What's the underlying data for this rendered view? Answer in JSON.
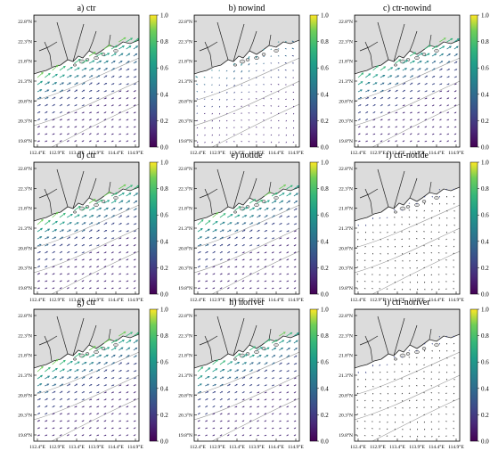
{
  "chart_data": [
    {
      "type": "quiver",
      "title": "a) ctr",
      "colorbar": {
        "ticks": [
          "0.0",
          "0.2",
          "0.4",
          "0.6",
          "0.8",
          "1.0"
        ],
        "range": [
          0,
          1
        ],
        "colormap": "viridis"
      },
      "xticks": [
        "112.4°E",
        "112.9°E",
        "113.4°E",
        "113.9°E",
        "114.4°E",
        "114.9°E"
      ],
      "yticks": [
        "22.8°N",
        "22.3°N",
        "21.8°N",
        "21.3°N",
        "20.8°N",
        "20.3°N",
        "19.8°N"
      ],
      "xlim": [
        112.4,
        114.9
      ],
      "ylim": [
        19.8,
        22.8
      ],
      "pattern": "jet",
      "strength": 1.0
    },
    {
      "type": "quiver",
      "title": "b) nowind",
      "colorbar": {
        "ticks": [
          "0.0",
          "0.2",
          "0.4",
          "0.6",
          "0.8",
          "1.0"
        ],
        "range": [
          0,
          1
        ],
        "colormap": "viridis"
      },
      "xticks": [
        "112.4°E",
        "112.9°E",
        "113.4°E",
        "113.9°E",
        "114.4°E",
        "114.9°E"
      ],
      "yticks": [
        "22.8°N",
        "22.3°N",
        "21.8°N",
        "21.3°N",
        "20.8°N",
        "20.3°N",
        "19.8°N"
      ],
      "xlim": [
        112.4,
        114.9
      ],
      "ylim": [
        19.8,
        22.8
      ],
      "pattern": "weak",
      "strength": 0.5
    },
    {
      "type": "quiver",
      "title": "c) ctr-nowind",
      "colorbar": {
        "ticks": [
          "0.0",
          "0.2",
          "0.4",
          "0.6",
          "0.8",
          "1.0"
        ],
        "range": [
          0,
          1
        ],
        "colormap": "viridis"
      },
      "xticks": [
        "112.4°E",
        "112.9°E",
        "113.4°E",
        "113.9°E",
        "114.4°E",
        "114.9°E"
      ],
      "yticks": [
        "22.8°N",
        "22.3°N",
        "21.8°N",
        "21.3°N",
        "20.8°N",
        "20.3°N",
        "19.8°N"
      ],
      "xlim": [
        112.4,
        114.9
      ],
      "ylim": [
        19.8,
        22.8
      ],
      "pattern": "jet",
      "strength": 0.9
    },
    {
      "type": "quiver",
      "title": "d) ctr",
      "colorbar": {
        "ticks": [
          "0.0",
          "0.2",
          "0.4",
          "0.6",
          "0.8",
          "1.0"
        ],
        "range": [
          0,
          1
        ],
        "colormap": "viridis"
      },
      "xticks": [
        "112.4°E",
        "112.9°E",
        "113.4°E",
        "113.9°E",
        "114.4°E",
        "114.9°E"
      ],
      "yticks": [
        "22.8°N",
        "22.3°N",
        "21.8°N",
        "21.3°N",
        "20.8°N",
        "20.3°N",
        "19.8°N"
      ],
      "xlim": [
        112.4,
        114.9
      ],
      "ylim": [
        19.8,
        22.8
      ],
      "pattern": "jet",
      "strength": 1.0
    },
    {
      "type": "quiver",
      "title": "e) notide",
      "colorbar": {
        "ticks": [
          "0.0",
          "0.2",
          "0.4",
          "0.6",
          "0.8",
          "1.0"
        ],
        "range": [
          0,
          1
        ],
        "colormap": "viridis"
      },
      "xticks": [
        "112.4°E",
        "112.9°E",
        "113.4°E",
        "113.9°E",
        "114.4°E",
        "114.9°E"
      ],
      "yticks": [
        "22.8°N",
        "22.3°N",
        "21.8°N",
        "21.3°N",
        "20.8°N",
        "20.3°N",
        "19.8°N"
      ],
      "xlim": [
        112.4,
        114.9
      ],
      "ylim": [
        19.8,
        22.8
      ],
      "pattern": "jet",
      "strength": 0.95
    },
    {
      "type": "quiver",
      "title": "f) ctr-notide",
      "colorbar": {
        "ticks": [
          "0.0",
          "0.2",
          "0.4",
          "0.6",
          "0.8",
          "1.0"
        ],
        "range": [
          0,
          1
        ],
        "colormap": "viridis"
      },
      "xticks": [
        "112.4°E",
        "112.9°E",
        "113.4°E",
        "113.9°E",
        "114.4°E",
        "114.9°E"
      ],
      "yticks": [
        "22.8°N",
        "22.3°N",
        "21.8°N",
        "21.3°N",
        "20.8°N",
        "20.3°N",
        "19.8°N"
      ],
      "xlim": [
        112.4,
        114.9
      ],
      "ylim": [
        19.8,
        22.8
      ],
      "pattern": "diff",
      "strength": 0.3
    },
    {
      "type": "quiver",
      "title": "g) ctr",
      "colorbar": {
        "ticks": [
          "0.0",
          "0.2",
          "0.4",
          "0.6",
          "0.8",
          "1.0"
        ],
        "range": [
          0,
          1
        ],
        "colormap": "viridis"
      },
      "xticks": [
        "112.4°E",
        "112.9°E",
        "113.4°E",
        "113.9°E",
        "114.4°E",
        "114.9°E"
      ],
      "yticks": [
        "22.8°N",
        "22.3°N",
        "21.8°N",
        "21.3°N",
        "20.8°N",
        "20.3°N",
        "19.8°N"
      ],
      "xlim": [
        112.4,
        114.9
      ],
      "ylim": [
        19.8,
        22.8
      ],
      "pattern": "jet",
      "strength": 1.0
    },
    {
      "type": "quiver",
      "title": "h) noriver",
      "colorbar": {
        "ticks": [
          "0.0",
          "0.2",
          "0.4",
          "0.6",
          "0.8",
          "1.0"
        ],
        "range": [
          0,
          1
        ],
        "colormap": "viridis"
      },
      "xticks": [
        "112.4°E",
        "112.9°E",
        "113.4°E",
        "113.9°E",
        "114.4°E",
        "114.9°E"
      ],
      "yticks": [
        "22.8°N",
        "22.3°N",
        "21.8°N",
        "21.3°N",
        "20.8°N",
        "20.3°N",
        "19.8°N"
      ],
      "xlim": [
        112.4,
        114.9
      ],
      "ylim": [
        19.8,
        22.8
      ],
      "pattern": "jet",
      "strength": 0.9
    },
    {
      "type": "quiver",
      "title": "i) ctr-noriver",
      "colorbar": {
        "ticks": [
          "0.0",
          "0.2",
          "0.4",
          "0.6",
          "0.8",
          "1.0"
        ],
        "range": [
          0,
          1
        ],
        "colormap": "viridis"
      },
      "xticks": [
        "112.4°E",
        "112.9°E",
        "113.4°E",
        "113.9°E",
        "114.4°E",
        "114.9°E"
      ],
      "yticks": [
        "22.8°N",
        "22.3°N",
        "21.8°N",
        "21.3°N",
        "20.8°N",
        "20.3°N",
        "19.8°N"
      ],
      "xlim": [
        112.4,
        114.9
      ],
      "ylim": [
        19.8,
        22.8
      ],
      "pattern": "diff",
      "strength": 0.35
    }
  ],
  "colors": {
    "land": "#dcdcdc",
    "coast": "#222222",
    "contour": "#9a9a9a",
    "frame": "#000000"
  }
}
